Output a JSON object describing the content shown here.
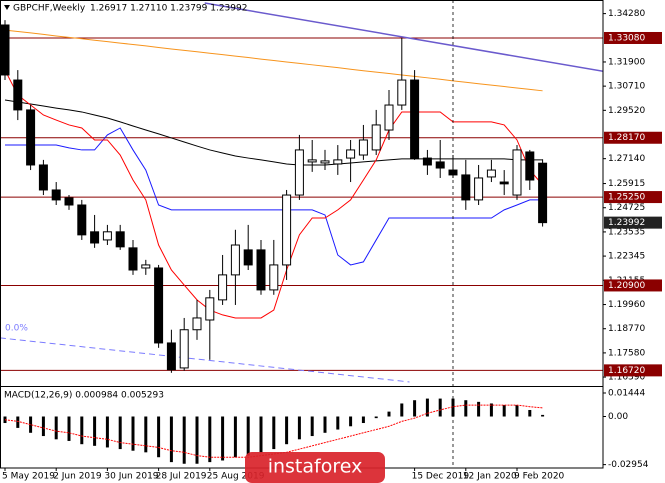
{
  "header": {
    "symbol": "GBPCHF,Weekly",
    "ohlc": "1.26917 1.27110 1.23799 1.23992"
  },
  "logo": "instaforex",
  "chart_data": [
    {
      "type": "candlestick",
      "categories": [
        "5 May 2019",
        null,
        null,
        null,
        "2 Jun 2019",
        null,
        null,
        null,
        "30 Jun 2019",
        null,
        null,
        null,
        "28 Jul 2019",
        null,
        null,
        null,
        "25 Aug 2019",
        null,
        null,
        null,
        null,
        null,
        null,
        null,
        null,
        null,
        null,
        null,
        null,
        null,
        null,
        null,
        "15 Dec 2019",
        null,
        null,
        null,
        "12 Jan 2020",
        null,
        null,
        null,
        "9 Feb 2020",
        null,
        null
      ],
      "open": [
        1.3372,
        1.3101,
        1.2954,
        1.2683,
        1.256,
        1.2521,
        1.2486,
        1.2354,
        1.2314,
        1.2354,
        1.2275,
        1.2176,
        1.2176,
        1.1807,
        1.1684,
        1.1872,
        1.192,
        1.2019,
        1.2142,
        1.2265,
        1.2265,
        1.2068,
        1.2191,
        1.2535,
        1.2698,
        1.2693,
        1.2688,
        1.2717,
        1.2732,
        1.2757,
        1.2855,
        1.2978,
        1.3101,
        1.2717,
        1.2698,
        1.2658,
        1.2634,
        1.2511,
        1.2624,
        1.2599,
        1.2535,
        1.2747,
        1.26917
      ],
      "high": [
        1.3396,
        1.315,
        1.2978,
        1.2708,
        1.2599,
        1.2535,
        1.2511,
        1.2437,
        1.2388,
        1.2388,
        1.2314,
        1.2216,
        1.2191,
        1.1872,
        1.193,
        1.2019,
        1.2068,
        1.224,
        1.2364,
        1.2388,
        1.2314,
        1.2314,
        1.256,
        1.2831,
        1.2806,
        1.2757,
        1.2781,
        1.2806,
        1.288,
        1.2954,
        1.3052,
        1.3308,
        1.315,
        1.2757,
        1.2806,
        1.2732,
        1.2708,
        1.2683,
        1.2708,
        1.2658,
        1.2781,
        1.2757,
        1.2711
      ],
      "low": [
        1.3101,
        1.2904,
        1.2658,
        1.2535,
        1.2486,
        1.2462,
        1.2314,
        1.2275,
        1.2289,
        1.2265,
        1.2142,
        1.2142,
        1.1783,
        1.166,
        1.167,
        1.1822,
        1.1724,
        1.1994,
        1.1994,
        1.2166,
        1.2044,
        1.2044,
        1.2117,
        1.2511,
        1.2649,
        1.2658,
        1.2634,
        1.2599,
        1.2708,
        1.2732,
        1.2806,
        1.2954,
        1.2708,
        1.2634,
        1.2619,
        1.2619,
        1.2462,
        1.2486,
        1.2599,
        1.2535,
        1.2511,
        1.256,
        1.23799
      ],
      "close": [
        1.3126,
        1.2954,
        1.2683,
        1.256,
        1.2511,
        1.2486,
        1.2339,
        1.2299,
        1.2354,
        1.228,
        1.2166,
        1.2191,
        1.1807,
        1.1675,
        1.1872,
        1.193,
        1.2029,
        1.2142,
        1.2289,
        1.2191,
        1.2068,
        1.2191,
        1.2535,
        1.2757,
        1.2708,
        1.2703,
        1.2708,
        1.2757,
        1.2806,
        1.288,
        1.2978,
        1.3101,
        1.2717,
        1.2683,
        1.2668,
        1.2634,
        1.2511,
        1.2619,
        1.2658,
        1.259,
        1.2757,
        1.2609,
        1.23992
      ],
      "up_color": "#ffffff",
      "down_color": "#000000",
      "edge_color": "#000000",
      "lines": [
        {
          "color": "#f7941d",
          "values": [
            1.3347,
            1.334,
            1.3333,
            1.3326,
            1.3318,
            1.3311,
            1.3304,
            1.3297,
            1.329,
            1.3283,
            1.3276,
            1.3269,
            1.3261,
            1.3254,
            1.3247,
            1.324,
            1.3233,
            1.3226,
            1.3219,
            1.3212,
            1.3204,
            1.3197,
            1.319,
            1.3183,
            1.3176,
            1.3169,
            1.3162,
            1.3154,
            1.3147,
            1.314,
            1.3133,
            1.3126,
            1.3119,
            1.3112,
            1.3105,
            1.3097,
            1.309,
            1.3083,
            1.3076,
            1.3069,
            1.3062,
            1.3055,
            1.3048
          ]
        },
        {
          "color": "#000000",
          "values": [
            1.3003,
            1.2993,
            1.2983,
            1.2973,
            1.2963,
            1.2954,
            1.2944,
            1.2929,
            1.2914,
            1.2895,
            1.2875,
            1.2855,
            1.2836,
            1.2816,
            1.2796,
            1.2776,
            1.2757,
            1.2742,
            1.2727,
            1.2717,
            1.2708,
            1.2698,
            1.2688,
            1.2683,
            1.2683,
            1.2683,
            1.2688,
            1.2693,
            1.2698,
            1.2703,
            1.2708,
            1.2713,
            1.2713,
            1.2713,
            1.2713,
            1.2713,
            1.2713,
            1.2713,
            1.2713,
            1.2713,
            1.2708,
            1.2708,
            1.2708
          ]
        },
        {
          "color": "#1a1aff",
          "values": [
            1.2781,
            1.2781,
            1.2781,
            1.2781,
            1.2781,
            1.2767,
            1.2757,
            1.2757,
            1.2831,
            1.2865,
            1.2757,
            1.2658,
            1.2486,
            1.2462,
            1.2462,
            1.2462,
            1.2462,
            1.2462,
            1.2462,
            1.2462,
            1.2462,
            1.2462,
            1.2462,
            1.2462,
            1.2462,
            1.2437,
            1.224,
            1.2191,
            1.2206,
            1.2314,
            1.2422,
            1.2422,
            1.2422,
            1.2422,
            1.2422,
            1.2422,
            1.2422,
            1.2422,
            1.2422,
            1.2462,
            1.2486,
            1.2511,
            1.2511
          ]
        },
        {
          "color": "#ff0000",
          "values": [
            1.315,
            1.3027,
            1.2978,
            1.2929,
            1.2904,
            1.288,
            1.2865,
            1.2806,
            1.2806,
            1.2732,
            1.2609,
            1.2511,
            1.2289,
            1.2166,
            1.2092,
            1.2019,
            1.1969,
            1.1945,
            1.193,
            1.193,
            1.193,
            1.1969,
            1.2166,
            1.2339,
            1.2422,
            1.2422,
            1.2462,
            1.2511,
            1.2609,
            1.2708,
            1.2855,
            1.2944,
            1.2944,
            1.2944,
            1.2944,
            1.2895,
            1.2895,
            1.2895,
            1.2895,
            1.288,
            1.2806,
            1.2658,
            1.2585
          ]
        }
      ],
      "trendlines": [
        {
          "color": "#6a5acd",
          "dashed": false,
          "x": [
            15.6,
            48.4
          ],
          "y": [
            1.348,
            1.3126
          ]
        },
        {
          "color": "#7b7bff",
          "dashed": true,
          "label": "0.0%",
          "x": [
            -0.4,
            31.6
          ],
          "y": [
            1.1832,
            1.1615
          ]
        }
      ],
      "levels": [
        {
          "value": 1.3308,
          "label": "1.33080"
        },
        {
          "value": 1.2817,
          "label": "1.28170"
        },
        {
          "value": 1.2525,
          "label": "1.25250"
        },
        {
          "value": 1.209,
          "label": "1.20900"
        },
        {
          "value": 1.1672,
          "label": "1.16720"
        }
      ],
      "level_color": "#8b0000",
      "last_price": 1.23992,
      "ylim": [
        1.16,
        1.3495
      ],
      "yticks": [
        {
          "value": 1.3428,
          "label": "1.34280"
        },
        {
          "value": 1.319,
          "label": "1.31900"
        },
        {
          "value": 1.3071,
          "label": "1.30710"
        },
        {
          "value": 1.2952,
          "label": "1.29520"
        },
        {
          "value": 1.2714,
          "label": "1.27140"
        },
        1.25915,
        1.24725,
        1.23535,
        1.22345,
        1.21155,
        {
          "value": 1.1996,
          "label": "1.19960"
        },
        {
          "value": 1.1877,
          "label": "1.18770"
        },
        {
          "value": 1.1758,
          "label": "1.17580"
        },
        {
          "value": 1.1639,
          "label": "1.16390"
        }
      ]
    },
    {
      "type": "macd",
      "title": "MACD(12,26,9) 0.000984 0.005293",
      "histogram": {
        "color": "#000000",
        "values": [
          -0.004,
          -0.007,
          -0.01,
          -0.012,
          -0.014,
          -0.015,
          -0.017,
          -0.018,
          -0.019,
          -0.02,
          -0.021,
          -0.022,
          -0.025,
          -0.028,
          -0.029,
          -0.029,
          -0.028,
          -0.027,
          -0.025,
          -0.024,
          -0.022,
          -0.02,
          -0.017,
          -0.014,
          -0.012,
          -0.01,
          -0.008,
          -0.006,
          -0.004,
          -0.001,
          0.003,
          0.008,
          0.01,
          0.011,
          0.011,
          0.011,
          0.01,
          0.009,
          0.008,
          0.007,
          0.007,
          0.004,
          0.000984
        ]
      },
      "signal": {
        "color": "#ff0000",
        "values": [
          -0.002,
          -0.003,
          -0.005,
          -0.007,
          -0.009,
          -0.01,
          -0.012,
          -0.013,
          -0.014,
          -0.016,
          -0.017,
          -0.018,
          -0.019,
          -0.021,
          -0.022,
          -0.024,
          -0.025,
          -0.025,
          -0.025,
          -0.025,
          -0.024,
          -0.023,
          -0.022,
          -0.02,
          -0.018,
          -0.016,
          -0.014,
          -0.012,
          -0.01,
          -0.008,
          -0.006,
          -0.003,
          -0.001,
          0.002,
          0.004,
          0.006,
          0.007,
          0.007,
          0.007,
          0.007,
          0.007,
          0.006,
          0.005293
        ]
      },
      "ylim": [
        -0.031,
        0.0175
      ],
      "yticks": [
        0.01444,
        {
          "value": 0,
          "label": "0.00"
        },
        -0.02954
      ]
    }
  ]
}
